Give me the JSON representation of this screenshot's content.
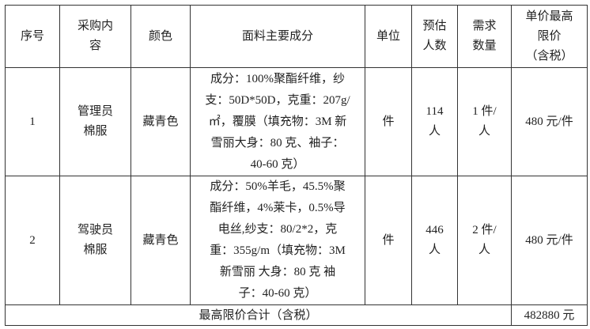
{
  "headers": [
    "序号",
    "采购内容",
    "颜色",
    "面料主要成分",
    "单位",
    "预估人数",
    "需求数量",
    "单价最高限价（含税）"
  ],
  "header_lines": {
    "c1": [
      "采购内",
      "容"
    ],
    "c5": [
      "预估",
      "人数"
    ],
    "c6": [
      "需求",
      "数量"
    ],
    "c7": [
      "单价最高",
      "限价",
      "（含税）"
    ]
  },
  "rows": [
    {
      "index": "1",
      "item_lines": [
        "管理员",
        "棉服"
      ],
      "color": "藏青色",
      "material_lines": [
        "成分：100%聚酯纤维，纱",
        "支：50D*50D，克重：207g/",
        "㎡，覆膜（填充物：3M 新",
        "雪丽大身：80 克、袖子：",
        "40-60 克）"
      ],
      "unit": "件",
      "people_lines": [
        "114",
        "人"
      ],
      "quantity_lines": [
        "1 件/",
        "人"
      ],
      "price": "480 元/件"
    },
    {
      "index": "2",
      "item_lines": [
        "驾驶员",
        "棉服"
      ],
      "color": "藏青色",
      "material_lines": [
        "成分：50%羊毛，45.5%聚",
        "酯纤维，4%莱卡，0.5%导",
        "电丝,纱支：80/2*2，克",
        "重：355g/m（填充物：3M",
        "新雪丽 大身：80 克  袖",
        "子：40-60 克）"
      ],
      "unit": "件",
      "people_lines": [
        "446",
        "人"
      ],
      "quantity_lines": [
        "2 件/",
        "人"
      ],
      "price": "480 元/件"
    }
  ],
  "total_label": "最高限价合计（含税）",
  "total_value": "482880 元"
}
